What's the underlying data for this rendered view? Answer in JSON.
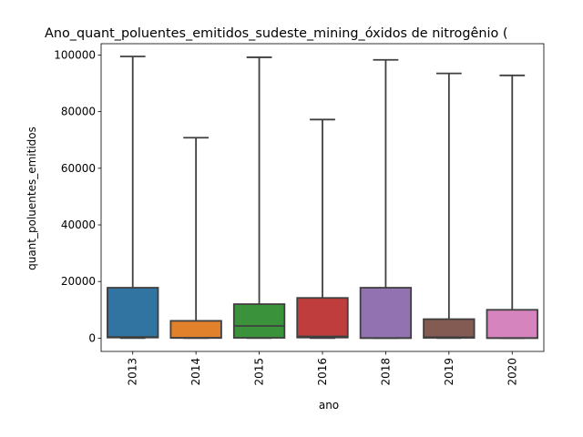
{
  "chart_data": {
    "type": "boxplot",
    "title": "Ano_quant_poluentes_emitidos_sudeste_mining_óxidos de nitrogênio (",
    "xlabel": "ano",
    "ylabel": "quant_poluentes_emitidos",
    "ylim": [
      -4700,
      104000
    ],
    "yticks": [
      0,
      20000,
      40000,
      60000,
      80000,
      100000
    ],
    "ytick_labels": [
      "0",
      "20000",
      "40000",
      "60000",
      "80000",
      "100000"
    ],
    "categories": [
      "2013",
      "2014",
      "2015",
      "2016",
      "2018",
      "2019",
      "2020"
    ],
    "boxes": [
      {
        "label": "2013",
        "whisker_low": 0,
        "q1": 200,
        "median": 400,
        "q3": 17800,
        "whisker_high": 99500,
        "color": "#3274a1"
      },
      {
        "label": "2014",
        "whisker_low": 0,
        "q1": 50,
        "median": 100,
        "q3": 6100,
        "whisker_high": 70800,
        "color": "#e1812c"
      },
      {
        "label": "2015",
        "whisker_low": 0,
        "q1": 100,
        "median": 4300,
        "q3": 12000,
        "whisker_high": 99200,
        "color": "#3a923a"
      },
      {
        "label": "2016",
        "whisker_low": 0,
        "q1": 200,
        "median": 600,
        "q3": 14200,
        "whisker_high": 77200,
        "color": "#c03d3e"
      },
      {
        "label": "2018",
        "whisker_low": 0,
        "q1": 0,
        "median": 50,
        "q3": 17800,
        "whisker_high": 98300,
        "color": "#9372b2"
      },
      {
        "label": "2019",
        "whisker_low": 0,
        "q1": 100,
        "median": 300,
        "q3": 6700,
        "whisker_high": 93500,
        "color": "#845b53"
      },
      {
        "label": "2020",
        "whisker_low": 0,
        "q1": 0,
        "median": 50,
        "q3": 10000,
        "whisker_high": 92800,
        "color": "#d684bd"
      }
    ],
    "grid": false,
    "legend": "none"
  }
}
